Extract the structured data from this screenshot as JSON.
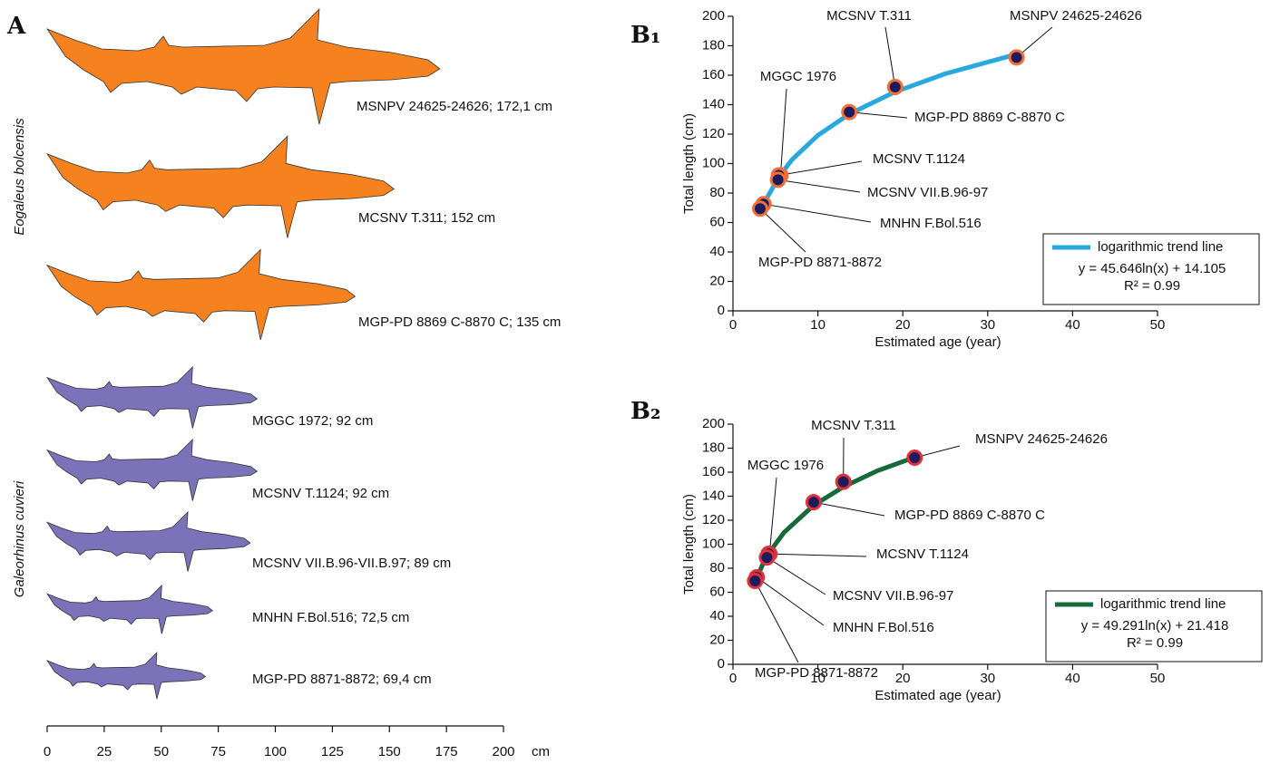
{
  "chart_data": [
    {
      "type": "silhouette",
      "panel_label": "A",
      "series": [
        {
          "name": "Eogaleus bolcensis",
          "color": "#f5821f",
          "values": [
            172.1,
            152,
            135
          ],
          "value_labels": [
            "MSNPV 24625-24626; 172,1 cm",
            "MCSNV T.311; 152 cm",
            "MGP-PD 8869 C-8870 C; 135 cm"
          ]
        },
        {
          "name": "Galeorhinus cuvieri",
          "color": "#7b72b9",
          "values": [
            92,
            92,
            89,
            72.5,
            69.4
          ],
          "value_labels": [
            "MGGC 1972; 92 cm",
            "MCSNV T.1124; 92 cm",
            "MCSNV VII.B.96-VII.B.97; 89 cm",
            "MNHN F.Bol.516; 72,5 cm",
            "MGP-PD 8871-8872; 69,4 cm"
          ]
        }
      ],
      "xlim": [
        0,
        200
      ],
      "xticks": [
        0,
        25,
        50,
        75,
        100,
        125,
        150,
        175,
        200
      ],
      "x_unit": "cm"
    },
    {
      "type": "scatter",
      "panel_label": "B₁",
      "xlabel": "Estimated age (year)",
      "ylabel": "Total length (cm)",
      "x": [
        33.4,
        19.1,
        13.7,
        5.6,
        5.4,
        5.3,
        3.6,
        3.2
      ],
      "values": [
        172.1,
        152,
        135,
        92,
        92,
        89,
        72.5,
        69.4
      ],
      "point_labels": [
        "MSNPV 24625-24626",
        "MCSNV T.311",
        "MGP-PD 8869 C-8870 C",
        "MGGC  1976",
        "MCSNV T.1124",
        "MCSNV VII.B.96-97",
        "MNHN F.Bol.516",
        "MGP-PD 8871-8872"
      ],
      "point_color": "#1e1b5c",
      "point_edge": "#f0703a",
      "trend": {
        "name": "logarithmic trend line",
        "color": "#29a8e0",
        "x": [
          3.6,
          5.5,
          7,
          10,
          13.7,
          19,
          25,
          33.4
        ],
        "values": [
          72.6,
          91.9,
          102.9,
          119.2,
          133.6,
          148.5,
          161.0,
          174.3
        ]
      },
      "equation": "y = 45.646ln(x) + 14.105",
      "r_squared": "R² = 0.99",
      "xlim": [
        0,
        50
      ],
      "xticks": [
        0,
        10,
        20,
        30,
        40,
        50
      ],
      "ylim": [
        0,
        200
      ],
      "yticks": [
        0,
        20,
        40,
        60,
        80,
        100,
        120,
        140,
        160,
        180,
        200
      ]
    },
    {
      "type": "scatter",
      "panel_label": "B₂",
      "xlabel": "Estimated age (year)",
      "ylabel": "Total length  (cm)",
      "x": [
        21.4,
        13.0,
        9.5,
        4.3,
        4.2,
        4.0,
        2.8,
        2.6
      ],
      "values": [
        172.1,
        152,
        135,
        92,
        92,
        89,
        72.5,
        69.4
      ],
      "point_labels": [
        "MSNPV 24625-24626",
        "MCSNV T.311",
        "MGP-PD 8869 C-8870 C",
        "MGGC 1976",
        "MCSNV T.1124",
        "MCSNV VII.B.96-97",
        "MNHN F.Bol.516",
        "MGP-PD 8871-8872"
      ],
      "point_color": "#1e1b5c",
      "point_edge": "#e0303a",
      "trend": {
        "name": "logarithmic trend line",
        "color": "#17683a",
        "x": [
          2.6,
          3.5,
          4.3,
          6,
          9.5,
          13,
          17,
          21.4
        ],
        "values": [
          68.5,
          83.2,
          93.3,
          109.7,
          132.4,
          147.8,
          161.1,
          172.4
        ]
      },
      "equation": "y = 49.291ln(x)  + 21.418",
      "r_squared": "R² = 0.99",
      "xlim": [
        0,
        50
      ],
      "xticks": [
        0,
        10,
        20,
        30,
        40,
        50
      ],
      "ylim": [
        0,
        200
      ],
      "yticks": [
        0,
        20,
        40,
        60,
        80,
        100,
        120,
        140,
        160,
        180,
        200
      ]
    }
  ]
}
